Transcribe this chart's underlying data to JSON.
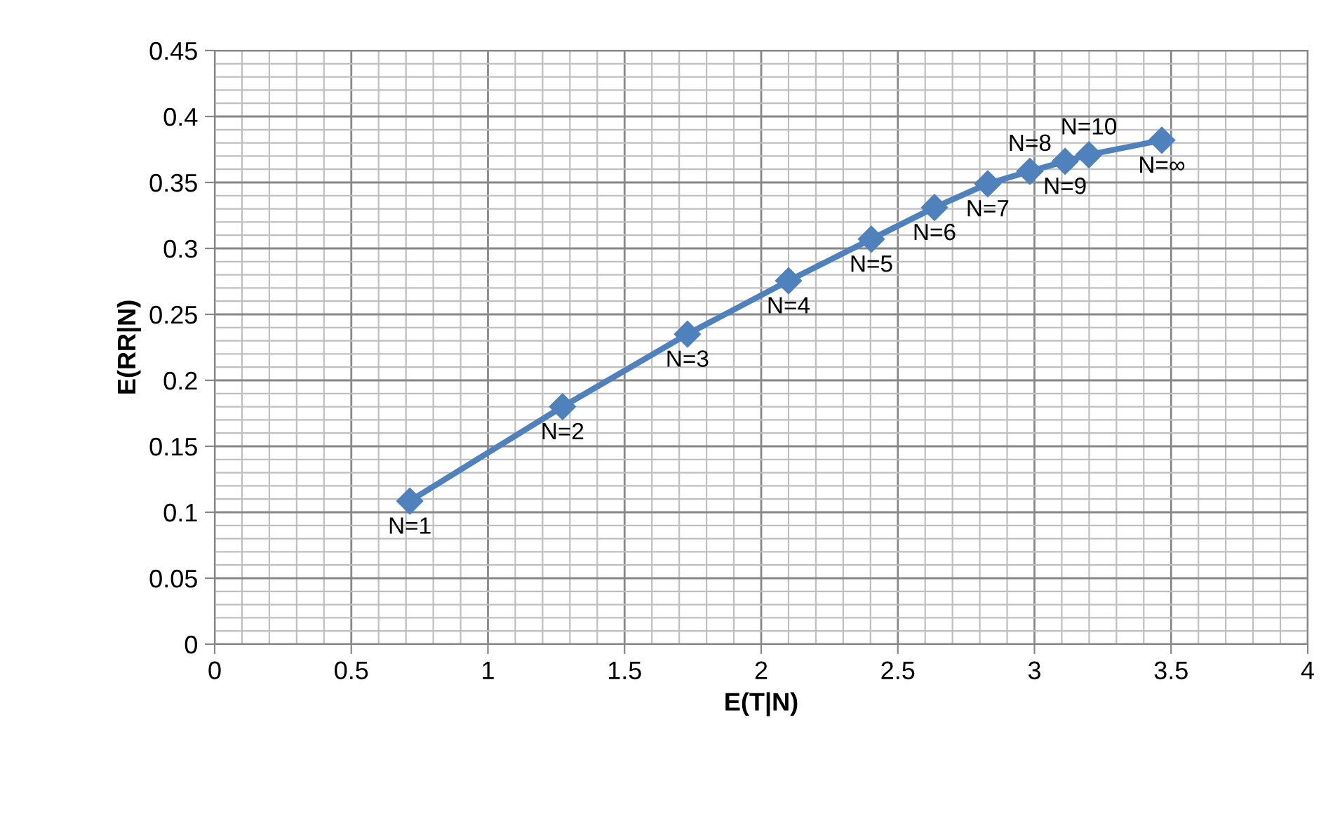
{
  "chart_data": {
    "type": "line",
    "xlabel": "E(T|N)",
    "ylabel": "E(RR|N)",
    "x": [
      0.714,
      1.273,
      1.73,
      2.1,
      2.403,
      2.634,
      2.829,
      2.983,
      3.112,
      3.199,
      3.466
    ],
    "series": [
      {
        "color": "#4f81bd",
        "values": [
          0.1085,
          0.18,
          0.235,
          0.2755,
          0.307,
          0.331,
          0.349,
          0.3585,
          0.366,
          0.371,
          0.382
        ]
      }
    ],
    "marker": "diamond",
    "line_style": "solid",
    "grid": true,
    "xlim": [
      0,
      4
    ],
    "xticks": [
      0,
      0.5,
      1,
      1.5,
      2,
      2.5,
      3,
      3.5,
      4
    ],
    "ylim": [
      0,
      0.45
    ],
    "yticks": [
      0,
      0.05,
      0.1,
      0.15,
      0.2,
      0.25,
      0.3,
      0.35,
      0.4,
      0.45
    ],
    "annotations": [
      {
        "text": "N=1",
        "x": 0.714,
        "y": 0.1085
      },
      {
        "text": "N=2",
        "x": 1.273,
        "y": 0.18
      },
      {
        "text": "N=3",
        "x": 1.73,
        "y": 0.235
      },
      {
        "text": "N=4",
        "x": 2.1,
        "y": 0.2755
      },
      {
        "text": "N=5",
        "x": 2.403,
        "y": 0.307
      },
      {
        "text": "N=6",
        "x": 2.634,
        "y": 0.331
      },
      {
        "text": "N=7",
        "x": 2.829,
        "y": 0.349
      },
      {
        "text": "N=8",
        "x": 2.983,
        "y": 0.3585
      },
      {
        "text": "N=9",
        "x": 3.112,
        "y": 0.366
      },
      {
        "text": "N=10",
        "x": 3.199,
        "y": 0.371
      },
      {
        "text": "N=∞",
        "x": 3.466,
        "y": 0.382
      }
    ]
  }
}
